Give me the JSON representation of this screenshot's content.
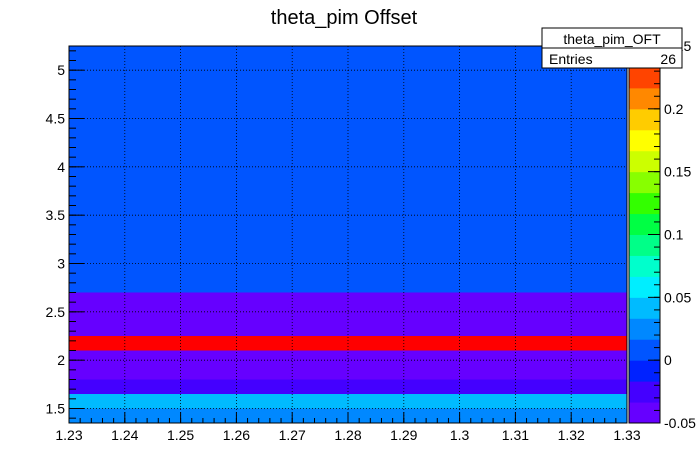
{
  "chart_data": {
    "type": "heatmap",
    "title": "theta_pim Offset",
    "xlabel": "",
    "ylabel": "",
    "xlim": [
      1.23,
      1.33
    ],
    "ylim": [
      1.35,
      5.25
    ],
    "zlim": [
      -0.05,
      0.25
    ],
    "grid": true,
    "x_ticks": [
      "1.23",
      "1.24",
      "1.25",
      "1.26",
      "1.27",
      "1.28",
      "1.29",
      "1.3",
      "1.31",
      "1.32",
      "1.33"
    ],
    "y_ticks": [
      "1.5",
      "2",
      "2.5",
      "3",
      "3.5",
      "4",
      "4.5",
      "5"
    ],
    "z_ticks": [
      "-0.05",
      "0",
      "0.05",
      "0.1",
      "0.15",
      "0.2",
      "0.25"
    ],
    "rows": [
      {
        "y0": 1.35,
        "y1": 1.5,
        "value": 0.03
      },
      {
        "y0": 1.5,
        "y1": 1.65,
        "value": 0.045
      },
      {
        "y0": 1.65,
        "y1": 1.8,
        "value": -0.02
      },
      {
        "y0": 1.8,
        "y1": 2.1,
        "value": -0.035
      },
      {
        "y0": 2.1,
        "y1": 2.25,
        "value": 0.27
      },
      {
        "y0": 2.25,
        "y1": 2.7,
        "value": -0.04
      },
      {
        "y0": 2.7,
        "y1": 5.25,
        "value": 0.005
      }
    ],
    "palette": [
      "#6600ff",
      "#4400ff",
      "#0022ff",
      "#0055ff",
      "#0088ff",
      "#00bbff",
      "#00eeff",
      "#00ffcc",
      "#00ff88",
      "#00ff44",
      "#33ff00",
      "#88ff00",
      "#ccff00",
      "#ffff00",
      "#ffcc00",
      "#ff8800",
      "#ff4400",
      "#ff0000"
    ]
  },
  "stats": {
    "name": "theta_pim_OFT",
    "entries_label": "Entries",
    "entries_value": "26"
  }
}
